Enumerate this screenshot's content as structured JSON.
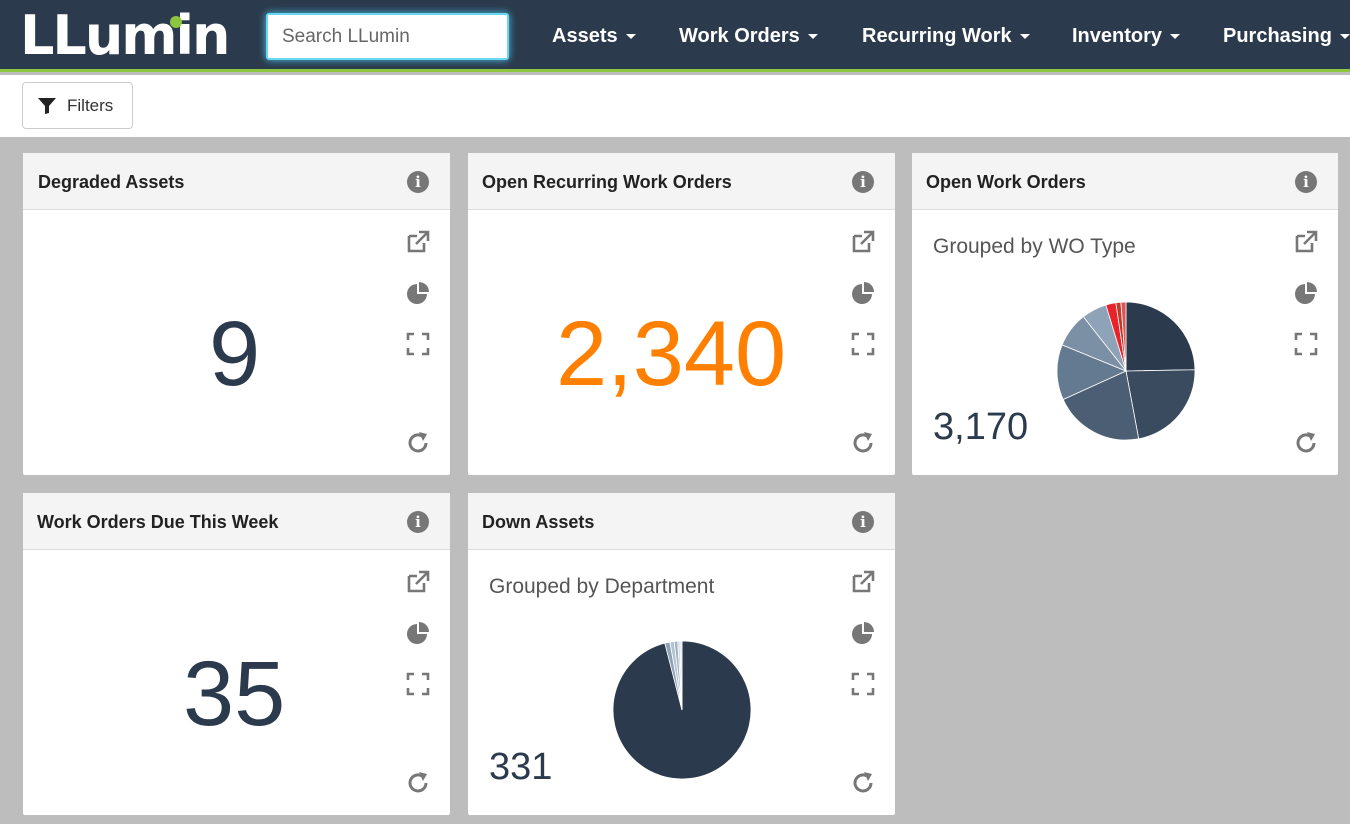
{
  "app": {
    "logo_text": "LLumin",
    "search_placeholder": "Search LLumin"
  },
  "nav": {
    "items": [
      {
        "label": "Assets"
      },
      {
        "label": "Work Orders"
      },
      {
        "label": "Recurring Work"
      },
      {
        "label": "Inventory"
      },
      {
        "label": "Purchasing"
      }
    ]
  },
  "filters": {
    "label": "Filters"
  },
  "cards": [
    {
      "title": "Degraded Assets",
      "value": "9",
      "value_color": "#2b3a4c"
    },
    {
      "title": "Open Recurring Work Orders",
      "value": "2,340",
      "value_color": "#ff8000"
    },
    {
      "title": "Open Work Orders",
      "subtitle": "Grouped by WO Type",
      "value": "3,170",
      "value_color": "#2b3a4c"
    },
    {
      "title": "Work Orders Due This Week",
      "value": "35",
      "value_color": "#2b3a4c"
    },
    {
      "title": "Down Assets",
      "subtitle": "Grouped by Department",
      "value": "331",
      "value_color": "#2b3a4c"
    }
  ],
  "icons": {
    "info": "i",
    "tools": [
      "external-link-icon",
      "pie-chart-icon",
      "expand-icon",
      "refresh-icon"
    ]
  },
  "chart_data": [
    {
      "type": "pie",
      "series": [
        {
          "values": [
            21,
            19,
            18,
            11,
            7,
            5,
            2,
            1,
            1
          ]
        }
      ],
      "colors": [
        "#2b3a4c",
        "#3a4b5f",
        "#4b5e74",
        "#647a91",
        "#7b8fa5",
        "#8fa3b8",
        "#e8232a",
        "#c0392b",
        "#d55"
      ]
    },
    {
      "type": "pie",
      "series": [
        {
          "values": [
            96,
            1.2,
            1,
            0.8,
            0.5,
            0.5
          ]
        }
      ],
      "colors": [
        "#2b3a4c",
        "#8fa3b8",
        "#b4c3d3",
        "#9db0c4",
        "#c8d3de",
        "#dfe6ed"
      ]
    }
  ]
}
